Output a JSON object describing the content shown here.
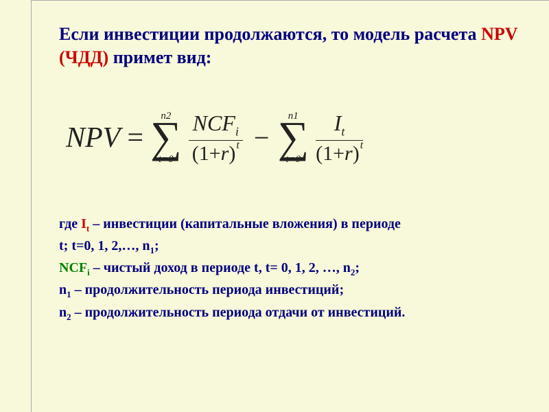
{
  "title": {
    "pre": "Если инвестиции продолжаются, то модель расчета ",
    "highlight": "NPV (ЧДД)",
    "post": " примет вид:"
  },
  "formula": {
    "lhs": "NPV",
    "eq": "=",
    "sum1": {
      "upper": "n2",
      "sigma": "∑",
      "lower": "t=0"
    },
    "frac1": {
      "num_base": "NCF",
      "num_sub": "i",
      "den_base": "(1+",
      "den_r": "r",
      "den_close": ")",
      "den_exp": "t"
    },
    "minus": "−",
    "sum2": {
      "upper": "n1",
      "sigma": "∑",
      "lower": "t=0"
    },
    "frac2": {
      "num_base": "I",
      "num_sub": "t",
      "den_base": "(1+",
      "den_r": "r",
      "den_close": ")",
      "den_exp": "t"
    }
  },
  "legend": {
    "l1_pre": "где ",
    "l1_it": "I",
    "l1_it_sub": "t",
    "l1_post": " – инвестиции (капитальные вложения) в периоде",
    "l2_pre": "t;  t=0, 1, 2,…, n",
    "l2_sub": "1",
    "l2_post": ";",
    "l3_ncf": "NCF",
    "l3_ncf_sub": "i",
    "l3_post": " – чистый доход в периоде t, t= 0, 1, 2, …, n",
    "l3_sub": "2",
    "l3_end": ";",
    "l4_pre": "n",
    "l4_sub": "1",
    "l4_post": " – продолжительность периода инвестиций;",
    "l5_pre": "n",
    "l5_sub": "2",
    "l5_post": " – продолжительность периода отдачи от инвестиций."
  },
  "colors": {
    "background": "#f8f8da",
    "text_main": "#000080",
    "highlight": "#cc0000",
    "ncf": "#008000",
    "formula": "#222222"
  }
}
